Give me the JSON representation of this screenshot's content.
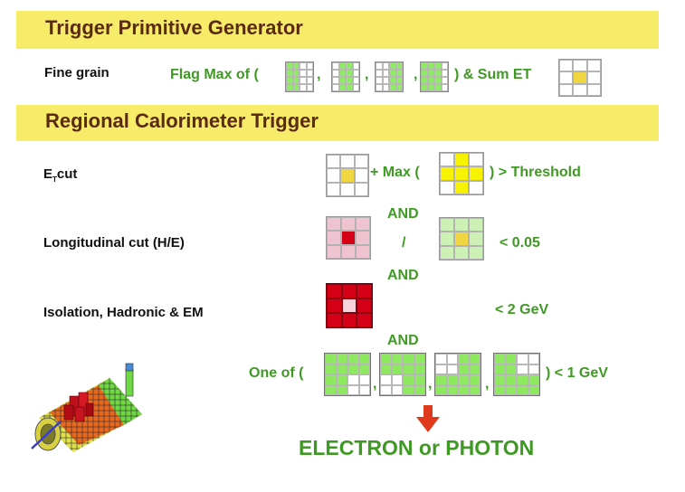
{
  "tpg": {
    "title": "Trigger Primitive Generator"
  },
  "fine_grain": {
    "label": "Fine grain",
    "flag_prefix": "Flag Max of (",
    "comma": ",",
    "suffix": ") & Sum ET"
  },
  "rct": {
    "title": "Regional Calorimeter Trigger"
  },
  "et_cut": {
    "label_e": "E",
    "label_sub": "T",
    "label_rest": "cut",
    "plus_max": "+ Max (",
    "threshold": ")  > Threshold"
  },
  "and1": "AND",
  "longitudinal": {
    "label": "Longitudinal cut (H/E)",
    "slash": "/",
    "limit": "< 0.05"
  },
  "and2": "AND",
  "isolation": {
    "label": "Isolation, Hadronic & EM",
    "limit": "< 2 GeV"
  },
  "and3": "AND",
  "one_of": {
    "prefix": "One of (",
    "comma": ",",
    "suffix": ")  < 1 GeV"
  },
  "result": "ELECTRON or PHOTON",
  "colors": {
    "banner": "#f6ec6a",
    "banner_text": "#5a2a12",
    "green_text": "#3f9a24",
    "arrow": "#e03a1c",
    "yellow_cell": "#f0d640",
    "red_cell": "#d40015",
    "green_cell": "#8ee860"
  }
}
